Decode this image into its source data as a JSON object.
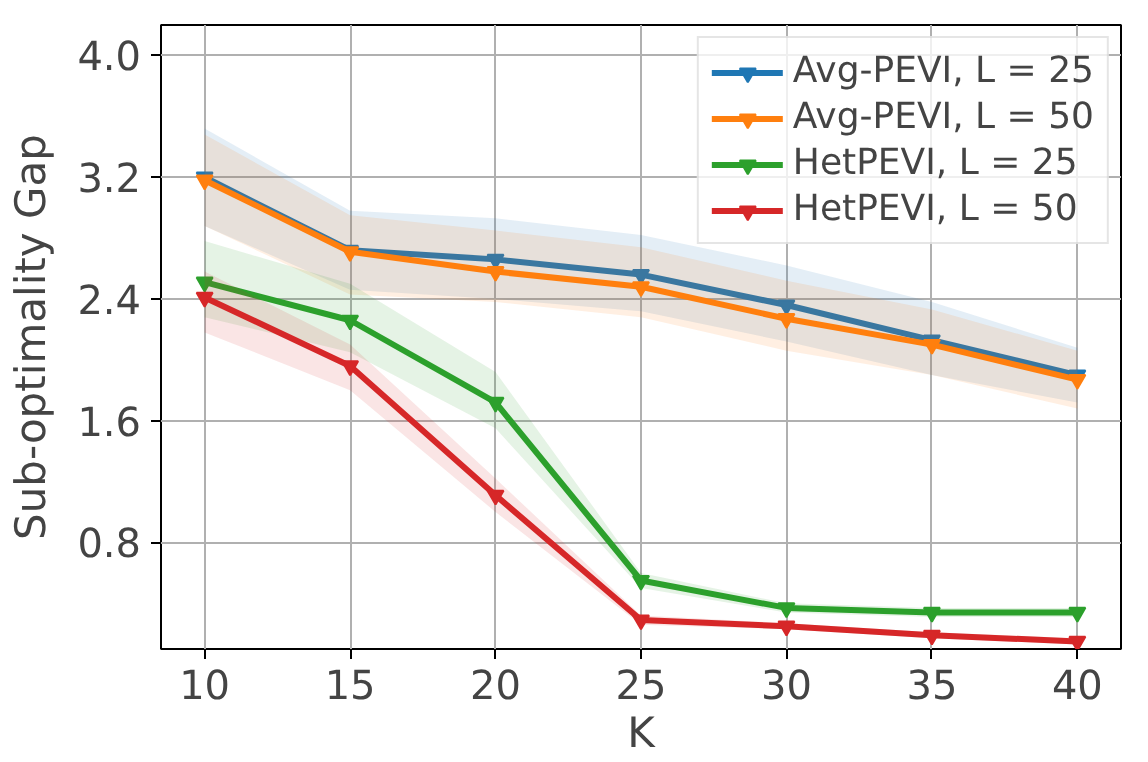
{
  "chart_data": {
    "type": "line",
    "xlabel": "K",
    "ylabel": "Sub-optimality Gap",
    "x": [
      10,
      15,
      20,
      25,
      30,
      35,
      40
    ],
    "xlim": [
      8.5,
      41.5
    ],
    "xticks": [
      10,
      15,
      20,
      25,
      30,
      35,
      40
    ],
    "ylim": [
      0.1,
      4.2
    ],
    "yticks": [
      {
        "value": 0.8,
        "label": "0.8"
      },
      {
        "value": 1.6,
        "label": "1.6"
      },
      {
        "value": 2.4,
        "label": "2.4"
      },
      {
        "value": 3.2,
        "label": "3.2"
      },
      {
        "value": 4.0,
        "label": "4.0"
      }
    ],
    "grid": true,
    "legend": "top right",
    "marker": "triangle",
    "line_style": "solid",
    "series": [
      {
        "name": "Avg-PEVI, L = 25",
        "color": "#1f77b4",
        "values": [
          3.2,
          2.72,
          2.66,
          2.56,
          2.36,
          2.13,
          1.9
        ],
        "upper": [
          3.52,
          2.98,
          2.93,
          2.82,
          2.62,
          2.38,
          2.08
        ],
        "lower": [
          2.88,
          2.46,
          2.4,
          2.32,
          2.12,
          1.9,
          1.72
        ]
      },
      {
        "name": "Avg-PEVI, L = 50",
        "color": "#ff7f0e",
        "values": [
          3.18,
          2.71,
          2.58,
          2.48,
          2.27,
          2.1,
          1.87
        ],
        "upper": [
          3.48,
          2.95,
          2.85,
          2.74,
          2.52,
          2.33,
          2.06
        ],
        "lower": [
          2.88,
          2.43,
          2.38,
          2.28,
          2.06,
          1.9,
          1.68
        ]
      },
      {
        "name": "HetPEVI, L = 25",
        "color": "#2ca02c",
        "values": [
          2.51,
          2.26,
          1.72,
          0.55,
          0.37,
          0.34,
          0.34
        ],
        "upper": [
          2.78,
          2.5,
          1.92,
          0.6,
          0.4,
          0.37,
          0.37
        ],
        "lower": [
          2.28,
          2.05,
          1.55,
          0.5,
          0.34,
          0.31,
          0.31
        ]
      },
      {
        "name": "HetPEVI, L = 50",
        "color": "#d62728",
        "values": [
          2.41,
          1.96,
          1.11,
          0.29,
          0.25,
          0.19,
          0.15
        ],
        "upper": [
          2.58,
          2.1,
          1.22,
          0.32,
          0.27,
          0.21,
          0.17
        ],
        "lower": [
          2.18,
          1.8,
          1.0,
          0.26,
          0.23,
          0.17,
          0.13
        ]
      }
    ]
  }
}
